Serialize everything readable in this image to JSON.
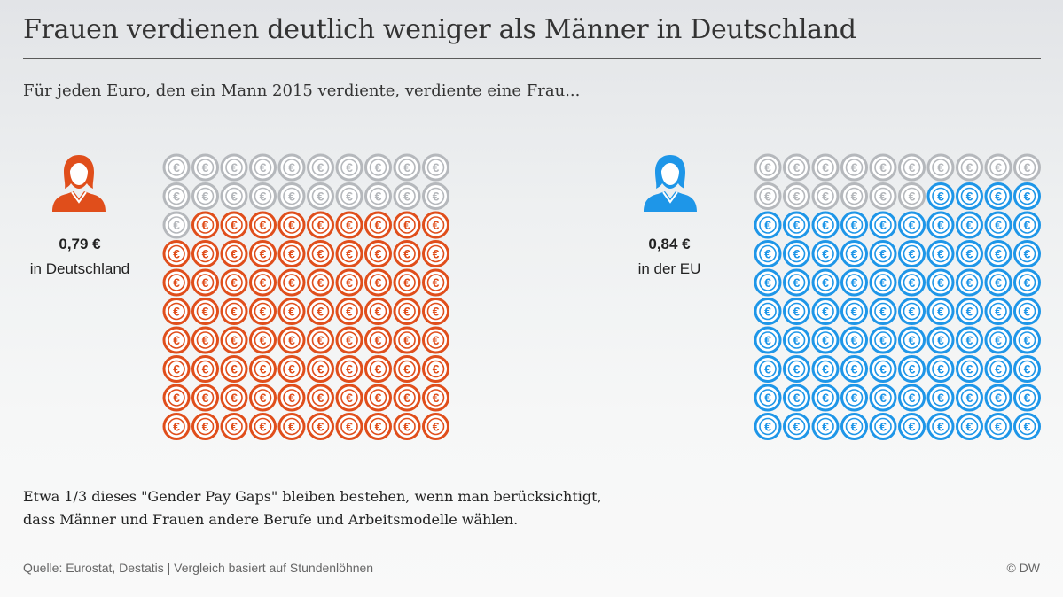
{
  "title": "Frauen verdienen deutlich weniger als Männer in Deutschland",
  "subtitle": "Für jeden Euro, den ein Mann 2015 verdiente, verdiente eine Frau...",
  "note_lines": [
    "Etwa 1/3 dieses \"Gender Pay Gaps\" bleiben bestehen, wenn man berücksichtigt,",
    "dass Männer und Frauen andere Berufe und Arbeitsmodelle wählen."
  ],
  "source": "Quelle: Eurostat, Destatis | Vergleich basiert auf Stundenlöhnen",
  "credit": "© DW",
  "icons": {
    "person": "woman-icon",
    "coin": "euro-coin-icon"
  },
  "chart_data": [
    {
      "type": "waffle",
      "title": "in Deutschland",
      "value_label": "0,79 €",
      "region_label": "in Deutschland",
      "value": 0.79,
      "total_units": 100,
      "filled_units": 79,
      "unfilled_units": 21,
      "grid": {
        "rows": 10,
        "cols": 10,
        "fill_from": "bottom"
      },
      "filled_color": "#e04e1b",
      "unfilled_color": "#b5b8bc",
      "symbol": "€"
    },
    {
      "type": "waffle",
      "title": "in der EU",
      "value_label": "0,84 €",
      "region_label": "in der EU",
      "value": 0.84,
      "total_units": 100,
      "filled_units": 84,
      "unfilled_units": 16,
      "grid": {
        "rows": 10,
        "cols": 10,
        "fill_from": "bottom"
      },
      "filled_color": "#1e96e8",
      "unfilled_color": "#b5b8bc",
      "symbol": "€"
    }
  ]
}
